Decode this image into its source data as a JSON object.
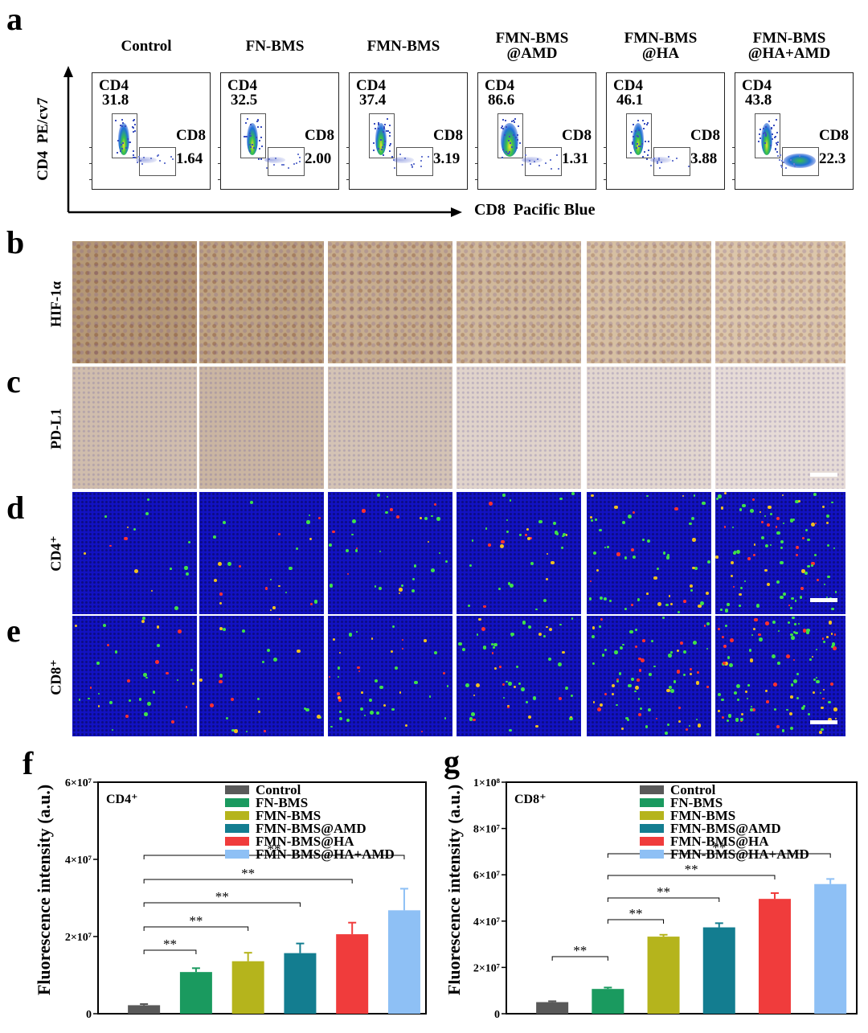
{
  "panels": {
    "a": "a",
    "b": "b",
    "c": "c",
    "d": "d",
    "e": "e",
    "f": "f",
    "g": "g"
  },
  "flow": {
    "y_axis_label": "CD4  PE/cv7",
    "x_axis_label": "CD8  Pacific Blue",
    "groups": [
      {
        "title": [
          "Control"
        ],
        "cd4_label": "CD4",
        "cd4": "31.8",
        "cd8_label": "CD8",
        "cd8": "1.64"
      },
      {
        "title": [
          "FN-BMS"
        ],
        "cd4_label": "CD4",
        "cd4": "32.5",
        "cd8_label": "CD8",
        "cd8": "2.00"
      },
      {
        "title": [
          "FMN-BMS"
        ],
        "cd4_label": "CD4",
        "cd4": "37.4",
        "cd8_label": "CD8",
        "cd8": "3.19"
      },
      {
        "title": [
          "FMN-BMS",
          "@AMD"
        ],
        "cd4_label": "CD4",
        "cd4": "86.6",
        "cd8_label": "CD8",
        "cd8": "1.31"
      },
      {
        "title": [
          "FMN-BMS",
          "@HA"
        ],
        "cd4_label": "CD4",
        "cd4": "46.1",
        "cd8_label": "CD8",
        "cd8": "3.88"
      },
      {
        "title": [
          "FMN-BMS",
          "@HA+AMD"
        ],
        "cd4_label": "CD4",
        "cd4": "43.8",
        "cd8_label": "CD8",
        "cd8": "22.3"
      }
    ]
  },
  "rows": {
    "b": "HIF-1α",
    "c": "PD-L1",
    "d": "CD4⁺",
    "e": "CD8⁺"
  },
  "colors": {
    "series": [
      "#595959",
      "#1a9a5f",
      "#b5b41c",
      "#137d90",
      "#f03c3c",
      "#8ec0f5"
    ],
    "ihc_brown": "#b98a5c",
    "if_blue": "#1010c8"
  },
  "chart_data": [
    {
      "type": "bar",
      "panel": "f",
      "inset_label": "CD4⁺",
      "ylabel": "Fluorescence intensity (a.u.)",
      "ylim": [
        0,
        60000000
      ],
      "yticks": [
        {
          "v": 0,
          "label": "0"
        },
        {
          "v": 20000000,
          "label": "2×10⁷"
        },
        {
          "v": 40000000,
          "label": "4×10⁷"
        },
        {
          "v": 60000000,
          "label": "6×10⁷"
        }
      ],
      "categories": [
        "Control",
        "FN-BMS",
        "FMN-BMS",
        "FMN-BMS@AMD",
        "FMN-BMS@HA",
        "FMN-BMS@HA+AMD"
      ],
      "values": [
        2200000,
        10800000,
        13600000,
        15700000,
        20600000,
        26800000
      ],
      "errors": [
        300000,
        1000000,
        2200000,
        2500000,
        3000000,
        5600000
      ],
      "legend_position": "top-right",
      "significance": [
        {
          "from": 0,
          "to": 1,
          "label": "**"
        },
        {
          "from": 0,
          "to": 2,
          "label": "**"
        },
        {
          "from": 0,
          "to": 3,
          "label": "**"
        },
        {
          "from": 0,
          "to": 4,
          "label": "**"
        },
        {
          "from": 0,
          "to": 5,
          "label": "**"
        }
      ]
    },
    {
      "type": "bar",
      "panel": "g",
      "inset_label": "CD8⁺",
      "ylabel": "Fluorescence intensity (a.u.)",
      "ylim": [
        0,
        100000000
      ],
      "yticks": [
        {
          "v": 0,
          "label": "0"
        },
        {
          "v": 20000000,
          "label": "2×10⁷"
        },
        {
          "v": 40000000,
          "label": "4×10⁷"
        },
        {
          "v": 60000000,
          "label": "6×10⁷"
        },
        {
          "v": 80000000,
          "label": "8×10⁷"
        },
        {
          "v": 100000000,
          "label": "1×10⁸"
        }
      ],
      "categories": [
        "Control",
        "FN-BMS",
        "FMN-BMS",
        "FMN-BMS@AMD",
        "FMN-BMS@HA",
        "FMN-BMS@HA+AMD"
      ],
      "values": [
        5000000,
        10700000,
        33300000,
        37300000,
        49600000,
        56000000
      ],
      "errors": [
        400000,
        600000,
        800000,
        1800000,
        2500000,
        2200000
      ],
      "legend_position": "top-right",
      "significance": [
        {
          "from": 0,
          "to": 1,
          "label": "**"
        },
        {
          "from": 1,
          "to": 2,
          "label": "**"
        },
        {
          "from": 1,
          "to": 3,
          "label": "**"
        },
        {
          "from": 1,
          "to": 4,
          "label": "**"
        },
        {
          "from": 1,
          "to": 5,
          "label": "**"
        }
      ]
    }
  ]
}
